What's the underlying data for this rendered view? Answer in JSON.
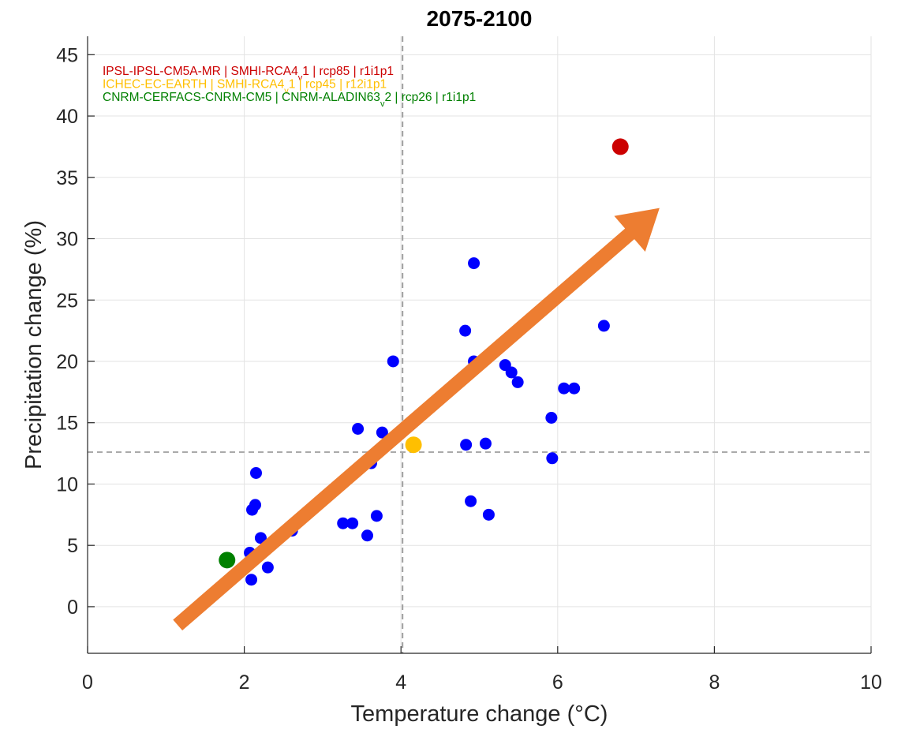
{
  "chart_data": {
    "type": "scatter",
    "title": "2075-2100",
    "xlabel": "Temperature change (°C)",
    "ylabel": "Precipitation change (%)",
    "xlim": [
      0,
      10
    ],
    "ylim": [
      -3.8,
      46.5
    ],
    "xticks": [
      0,
      2,
      4,
      6,
      8,
      10
    ],
    "yticks": [
      0,
      5,
      10,
      15,
      20,
      25,
      30,
      35,
      40,
      45
    ],
    "grid": true,
    "reference_lines": {
      "vertical_x": 4.02,
      "horizontal_y": 12.6
    },
    "annotations": [
      {
        "text": "IPSL-IPSL-CM5A-MR | SMHI-RCA4",
        "sub": "v",
        "text2": "1 | rcp85 | r1i1p1",
        "color": "#cc0000"
      },
      {
        "text": "ICHEC-EC-EARTH | SMHI-RCA4",
        "sub": "v",
        "text2": "1 | rcp45 | r12i1p1",
        "color": "#ffbf00"
      },
      {
        "text": "CNRM-CERFACS-CNRM-CM5 | CNRM-ALADIN63",
        "sub": "v",
        "text2": "2 | rcp26 | r1i1p1",
        "color": "#008000"
      }
    ],
    "series": [
      {
        "color": "#0000ff",
        "points": [
          [
            2.07,
            4.4
          ],
          [
            2.09,
            2.2
          ],
          [
            2.1,
            7.9
          ],
          [
            2.14,
            8.3
          ],
          [
            2.15,
            10.9
          ],
          [
            2.21,
            5.6
          ],
          [
            2.3,
            3.2
          ],
          [
            2.61,
            6.2
          ],
          [
            3.26,
            6.8
          ],
          [
            3.38,
            6.8
          ],
          [
            3.45,
            14.5
          ],
          [
            3.57,
            5.8
          ],
          [
            3.62,
            11.7
          ],
          [
            3.69,
            7.4
          ],
          [
            3.76,
            14.2
          ],
          [
            3.9,
            20.0
          ],
          [
            4.82,
            22.5
          ],
          [
            4.83,
            13.2
          ],
          [
            4.89,
            8.6
          ],
          [
            4.93,
            28.0
          ],
          [
            4.93,
            20.0
          ],
          [
            5.08,
            13.3
          ],
          [
            5.12,
            7.5
          ],
          [
            5.33,
            19.7
          ],
          [
            5.41,
            19.1
          ],
          [
            5.49,
            18.3
          ],
          [
            5.92,
            15.4
          ],
          [
            5.93,
            12.1
          ],
          [
            6.08,
            17.8
          ],
          [
            6.21,
            17.8
          ],
          [
            6.59,
            22.9
          ]
        ]
      },
      {
        "color": "#cc0000",
        "points": [
          [
            6.8,
            37.5
          ]
        ]
      },
      {
        "color": "#ffbf00",
        "points": [
          [
            4.16,
            13.2
          ]
        ]
      },
      {
        "color": "#008000",
        "points": [
          [
            1.78,
            3.8
          ]
        ]
      }
    ],
    "arrow": {
      "from": [
        1.15,
        -1.5
      ],
      "to": [
        7.3,
        32.5
      ],
      "color": "#ed7d31"
    }
  }
}
